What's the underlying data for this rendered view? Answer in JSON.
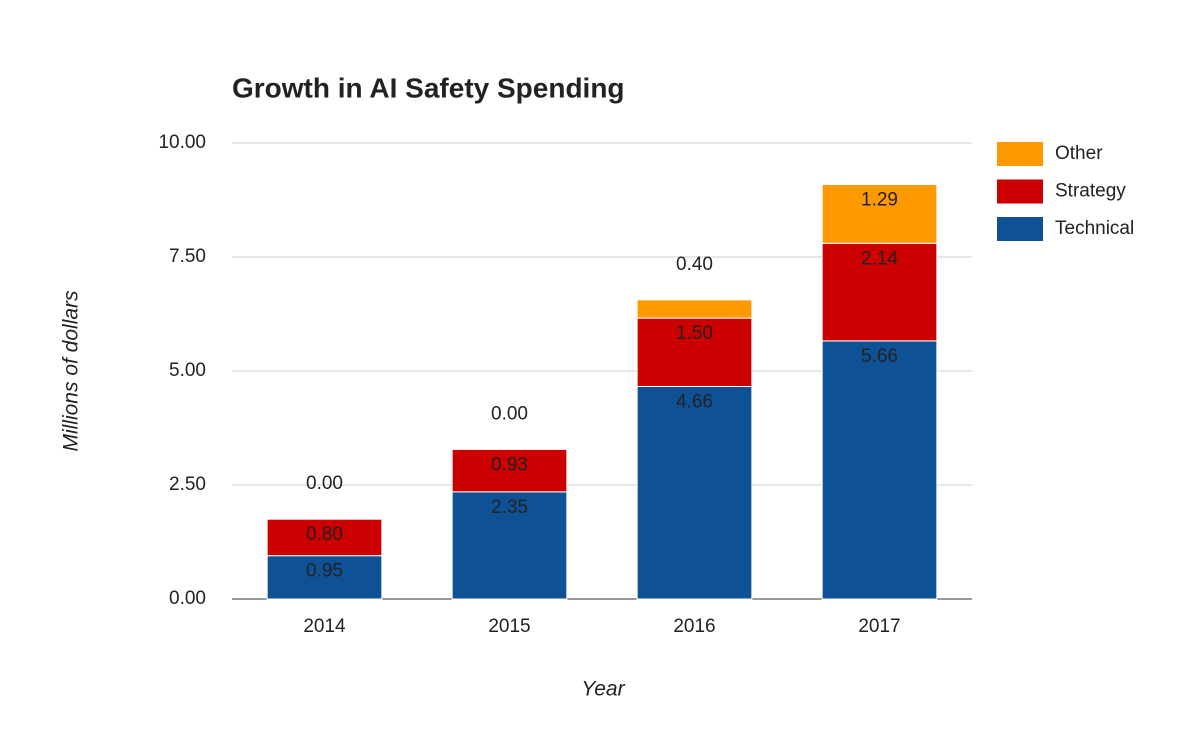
{
  "chart_data": {
    "type": "stacked_bar",
    "title": "Growth in AI Safety Spending",
    "x_label": "Year",
    "y_label": "Millions of dollars",
    "categories": [
      "2014",
      "2015",
      "2016",
      "2017"
    ],
    "series": [
      {
        "name": "Technical",
        "color": "#0f5195",
        "values": [
          0.95,
          2.35,
          4.66,
          5.66
        ],
        "value_labels": [
          "0.95",
          "2.35",
          "4.66",
          "5.66"
        ]
      },
      {
        "name": "Strategy",
        "color": "#cc0000",
        "values": [
          0.8,
          0.93,
          1.5,
          2.14
        ],
        "value_labels": [
          "0.80",
          "0.93",
          "1.50",
          "2.14"
        ]
      },
      {
        "name": "Other",
        "color": "#ff9900",
        "values": [
          0,
          0,
          0.4,
          1.29
        ],
        "value_labels": [
          "0.00",
          "0.00",
          "0.40",
          "1.29"
        ]
      }
    ],
    "ylim": [
      0,
      10
    ],
    "yticks": [
      {
        "value": 0,
        "label": "0.00"
      },
      {
        "value": 2.5,
        "label": "2.50"
      },
      {
        "value": 5,
        "label": "5.00"
      },
      {
        "value": 7.5,
        "label": "7.50"
      },
      {
        "value": 10,
        "label": "10.00"
      }
    ],
    "grid": true,
    "legend": "right"
  }
}
